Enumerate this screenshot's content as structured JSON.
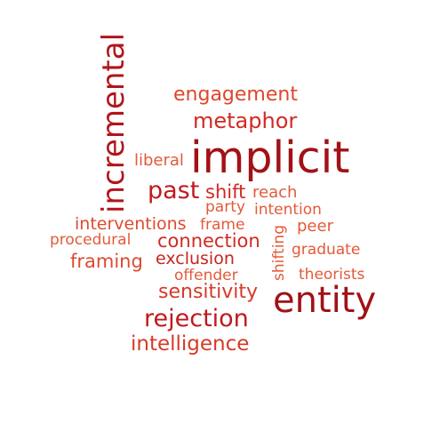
{
  "words": [
    {
      "key": "implicit",
      "text": "implicit",
      "color": "#a11217"
    },
    {
      "key": "entity",
      "text": "entity",
      "color": "#a11217"
    },
    {
      "key": "incremental",
      "text": "incremental",
      "color": "#b2151b"
    },
    {
      "key": "rejection",
      "text": "rejection",
      "color": "#c0191f"
    },
    {
      "key": "past",
      "text": "past",
      "color": "#c0191f"
    },
    {
      "key": "metaphor",
      "text": "metaphor",
      "color": "#d12a24"
    },
    {
      "key": "engagement",
      "text": "engagement",
      "color": "#e0452b"
    },
    {
      "key": "intelligence",
      "text": "intelligence",
      "color": "#d63a28"
    },
    {
      "key": "sensitivity",
      "text": "sensitivity",
      "color": "#d63a28"
    },
    {
      "key": "connection",
      "text": "connection",
      "color": "#d12a24"
    },
    {
      "key": "framing",
      "text": "framing",
      "color": "#de4a30"
    },
    {
      "key": "interventions",
      "text": "interventions",
      "color": "#de4a30"
    },
    {
      "key": "exclusion",
      "text": "exclusion",
      "color": "#c8251f"
    },
    {
      "key": "shift",
      "text": "shift",
      "color": "#d12a24"
    },
    {
      "key": "reach",
      "text": "reach",
      "color": "#e35a3a"
    },
    {
      "key": "liberal",
      "text": "liberal",
      "color": "#e35a3a"
    },
    {
      "key": "party",
      "text": "party",
      "color": "#e35a3a"
    },
    {
      "key": "intention",
      "text": "intention",
      "color": "#e35a3a"
    },
    {
      "key": "frame",
      "text": "frame",
      "color": "#e35a3a"
    },
    {
      "key": "peer",
      "text": "peer",
      "color": "#e35a3a"
    },
    {
      "key": "procedural",
      "text": "procedural",
      "color": "#e35a3a"
    },
    {
      "key": "graduate",
      "text": "graduate",
      "color": "#e35a3a"
    },
    {
      "key": "offender",
      "text": "offender",
      "color": "#e35a3a"
    },
    {
      "key": "theorists",
      "text": "theorists",
      "color": "#e35a3a"
    },
    {
      "key": "shifting",
      "text": "shifting",
      "color": "#e35a3a"
    }
  ]
}
